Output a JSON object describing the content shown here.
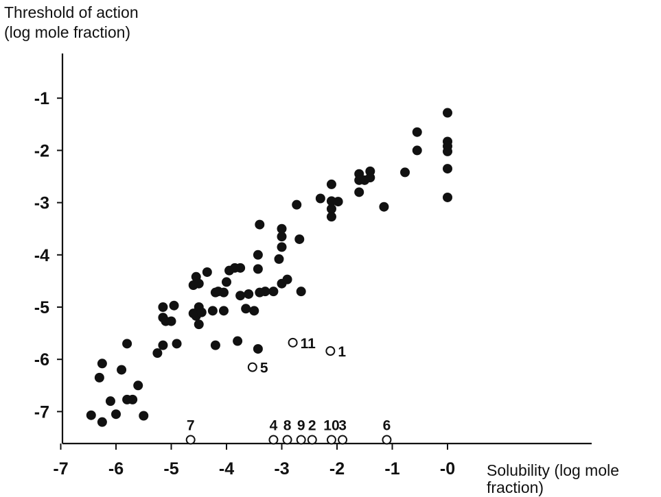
{
  "chart_data": {
    "type": "scatter",
    "title": "",
    "ylabel_lines": [
      "Threshold of action",
      "(log mole fraction)"
    ],
    "xlabel_lines": [
      "Solubility (log mole",
      "fraction)"
    ],
    "xlim": [
      -7,
      0
    ],
    "ylim": [
      -7.6,
      0
    ],
    "x_ticks": [
      {
        "value": -7,
        "label": "-7"
      },
      {
        "value": -6,
        "label": "-6"
      },
      {
        "value": -5,
        "label": "-5"
      },
      {
        "value": -4,
        "label": "-4"
      },
      {
        "value": -3,
        "label": "-3"
      },
      {
        "value": -2,
        "label": "-2"
      },
      {
        "value": -1,
        "label": "-1"
      },
      {
        "value": 0,
        "label": "-0"
      }
    ],
    "y_ticks": [
      {
        "value": -1,
        "label": "-1"
      },
      {
        "value": -2,
        "label": "-2"
      },
      {
        "value": -3,
        "label": "-3"
      },
      {
        "value": -4,
        "label": "-4"
      },
      {
        "value": -5,
        "label": "-5"
      },
      {
        "value": -6,
        "label": "-6"
      },
      {
        "value": -7,
        "label": "-7"
      }
    ],
    "grid": false,
    "series": [
      {
        "marker": "filled-circle",
        "points": [
          [
            0.0,
            -1.28
          ],
          [
            -0.55,
            -1.65
          ],
          [
            -0.55,
            -2.0
          ],
          [
            0.0,
            -1.83
          ],
          [
            0.0,
            -1.92
          ],
          [
            0.0,
            -2.02
          ],
          [
            0.0,
            -2.35
          ],
          [
            0.0,
            -2.9
          ],
          [
            -0.77,
            -2.42
          ],
          [
            -1.15,
            -3.08
          ],
          [
            -1.4,
            -2.4
          ],
          [
            -1.4,
            -2.52
          ],
          [
            -1.5,
            -2.57
          ],
          [
            -1.6,
            -2.45
          ],
          [
            -1.6,
            -2.57
          ],
          [
            -1.6,
            -2.8
          ],
          [
            -1.98,
            -2.98
          ],
          [
            -2.1,
            -2.65
          ],
          [
            -2.1,
            -2.97
          ],
          [
            -2.1,
            -3.12
          ],
          [
            -2.1,
            -3.27
          ],
          [
            -2.3,
            -2.92
          ],
          [
            -2.73,
            -3.04
          ],
          [
            -2.68,
            -3.7
          ],
          [
            -3.0,
            -3.5
          ],
          [
            -3.0,
            -3.65
          ],
          [
            -3.0,
            -3.85
          ],
          [
            -3.05,
            -4.08
          ],
          [
            -3.4,
            -3.42
          ],
          [
            -3.43,
            -4.0
          ],
          [
            -3.43,
            -4.27
          ],
          [
            -3.0,
            -4.55
          ],
          [
            -2.9,
            -4.47
          ],
          [
            -2.65,
            -4.7
          ],
          [
            -3.15,
            -4.7
          ],
          [
            -3.3,
            -4.7
          ],
          [
            -3.4,
            -4.72
          ],
          [
            -3.5,
            -5.07
          ],
          [
            -3.43,
            -5.8
          ],
          [
            -3.6,
            -4.75
          ],
          [
            -3.75,
            -4.78
          ],
          [
            -3.65,
            -5.03
          ],
          [
            -3.75,
            -4.25
          ],
          [
            -3.85,
            -4.25
          ],
          [
            -3.95,
            -4.3
          ],
          [
            -4.0,
            -4.52
          ],
          [
            -4.05,
            -4.72
          ],
          [
            -4.05,
            -5.07
          ],
          [
            -4.15,
            -4.7
          ],
          [
            -4.2,
            -4.72
          ],
          [
            -4.25,
            -5.07
          ],
          [
            -4.35,
            -4.33
          ],
          [
            -3.8,
            -5.65
          ],
          [
            -4.2,
            -5.73
          ],
          [
            -4.55,
            -4.42
          ],
          [
            -4.6,
            -4.58
          ],
          [
            -4.5,
            -4.55
          ],
          [
            -4.5,
            -5.0
          ],
          [
            -4.55,
            -5.17
          ],
          [
            -4.6,
            -5.12
          ],
          [
            -4.5,
            -5.33
          ],
          [
            -4.45,
            -5.1
          ],
          [
            -4.9,
            -5.7
          ],
          [
            -4.95,
            -4.97
          ],
          [
            -5.0,
            -5.27
          ],
          [
            -5.15,
            -5.0
          ],
          [
            -5.15,
            -5.2
          ],
          [
            -5.15,
            -5.73
          ],
          [
            -5.1,
            -5.27
          ],
          [
            -5.25,
            -5.88
          ],
          [
            -5.8,
            -5.7
          ],
          [
            -5.6,
            -6.5
          ],
          [
            -5.5,
            -7.08
          ],
          [
            -5.7,
            -6.77
          ],
          [
            -5.8,
            -6.77
          ],
          [
            -5.9,
            -6.2
          ],
          [
            -6.0,
            -7.05
          ],
          [
            -6.1,
            -6.8
          ],
          [
            -6.25,
            -6.08
          ],
          [
            -6.3,
            -6.35
          ],
          [
            -6.25,
            -7.2
          ],
          [
            -6.45,
            -7.07
          ]
        ]
      },
      {
        "marker": "open-circle",
        "points": [
          {
            "x": -2.12,
            "y": -5.84,
            "label": "1"
          },
          {
            "x": -2.8,
            "y": -5.68,
            "label": "11"
          },
          {
            "x": -3.53,
            "y": -6.15,
            "label": "5"
          },
          {
            "x": -4.65,
            "y": -7.54,
            "label": "7"
          },
          {
            "x": -3.15,
            "y": -7.54,
            "label": "4"
          },
          {
            "x": -2.9,
            "y": -7.54,
            "label": "8"
          },
          {
            "x": -2.65,
            "y": -7.54,
            "label": "9"
          },
          {
            "x": -2.45,
            "y": -7.54,
            "label": "2"
          },
          {
            "x": -2.1,
            "y": -7.54,
            "label": "10"
          },
          {
            "x": -1.9,
            "y": -7.54,
            "label": "3"
          },
          {
            "x": -1.1,
            "y": -7.54,
            "label": "6"
          }
        ]
      }
    ]
  }
}
